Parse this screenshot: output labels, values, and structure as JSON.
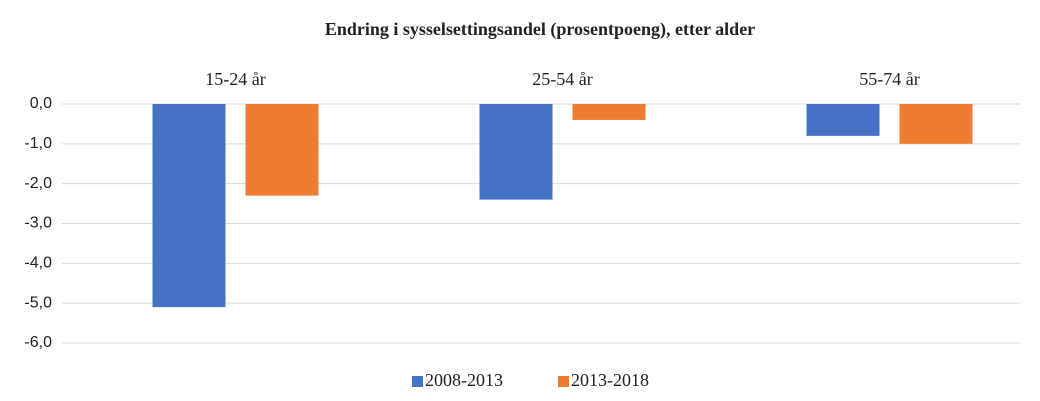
{
  "chart_data": {
    "type": "bar",
    "title": "Endring i sysselsettingsandel (prosentpoeng), etter alder",
    "categories": [
      "15-24 år",
      "25-54 år",
      "55-74 år"
    ],
    "series": [
      {
        "name": "2008-2013",
        "color": "#4472c4",
        "values": [
          -5.1,
          -2.4,
          -0.8
        ]
      },
      {
        "name": "2013-2018",
        "color": "#ed7d31",
        "values": [
          -2.3,
          -0.4,
          -1.0
        ]
      }
    ],
    "ylim": [
      -6,
      0
    ],
    "yticks": [
      {
        "value": 0,
        "label": "0,0"
      },
      {
        "value": -1,
        "label": "-1,0"
      },
      {
        "value": -2,
        "label": "-2,0"
      },
      {
        "value": -3,
        "label": "-3,0"
      },
      {
        "value": -4,
        "label": "-4,0"
      },
      {
        "value": -5,
        "label": "-5,0"
      },
      {
        "value": -6,
        "label": "-6,0"
      }
    ],
    "grid": true
  }
}
